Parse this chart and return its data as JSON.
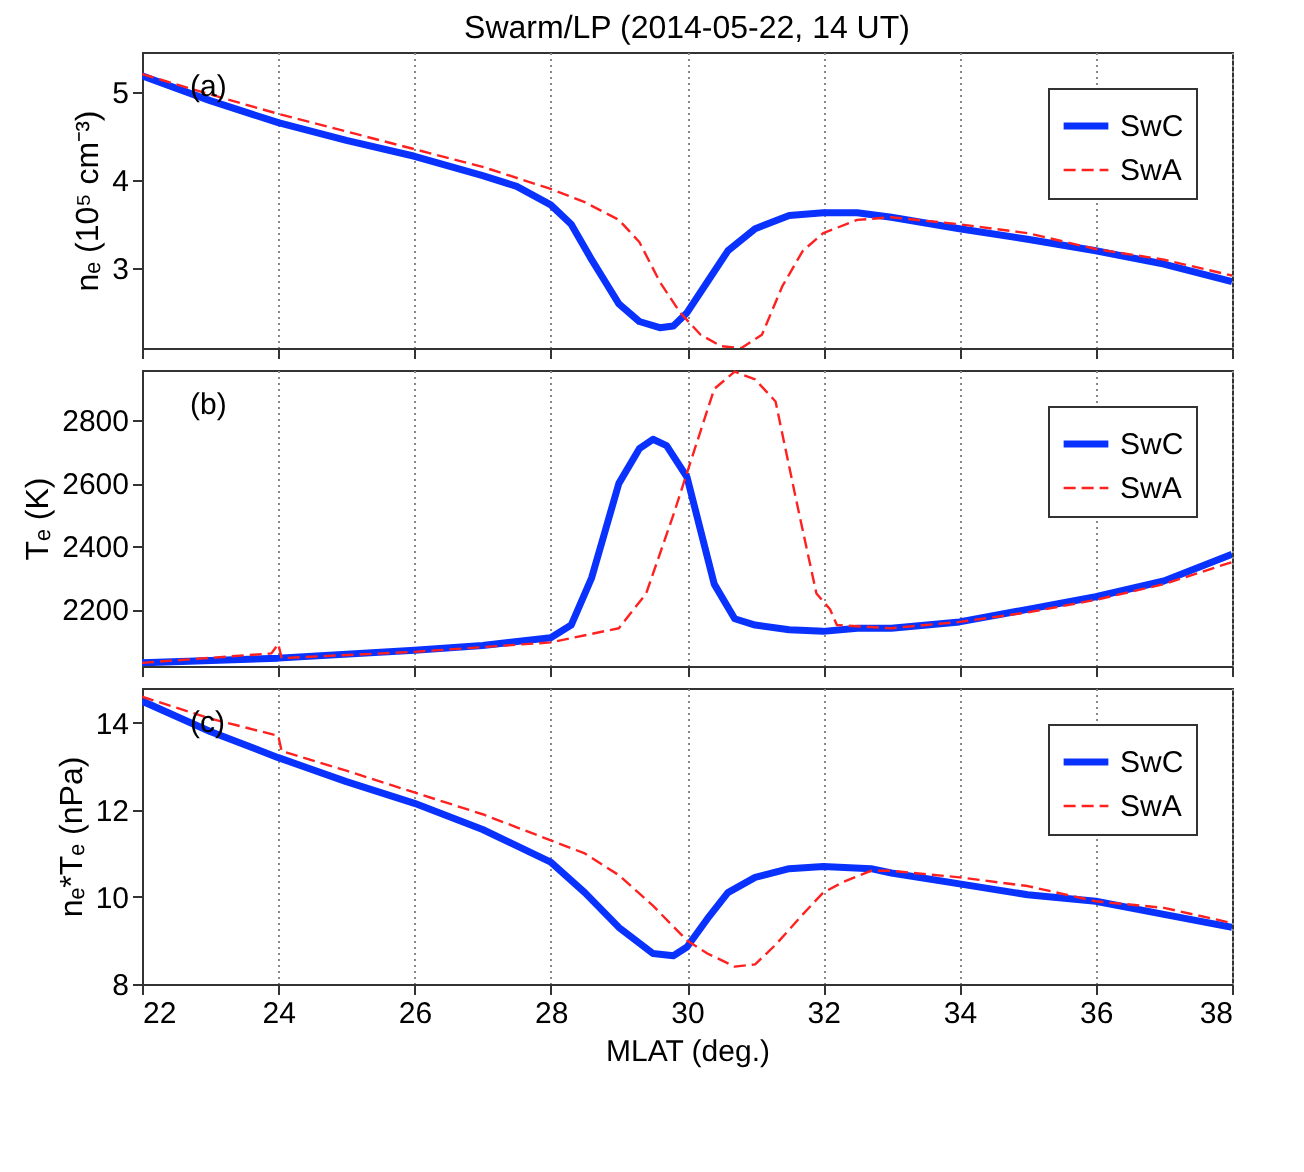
{
  "chart_data": [
    {
      "type": "line",
      "title": "Swarm/LP (2014-05-22, 14 UT)",
      "ylabel": "nₑ (10⁵ cm⁻³)",
      "annotations": [
        "(a)"
      ],
      "xlim": [
        22,
        38
      ],
      "xticks": [
        22,
        24,
        26,
        28,
        30,
        32,
        34,
        36,
        38
      ],
      "ylim": [
        2.1,
        5.45
      ],
      "yticks": [
        3,
        4,
        5
      ],
      "grid": "x",
      "legend": "top right",
      "tick_labels": "y",
      "series": [
        {
          "name": "SwC",
          "color": "#0a32ff",
          "line_style": "solid",
          "x": [
            22,
            23,
            24,
            25,
            26,
            27,
            27.5,
            28,
            28.3,
            28.6,
            28.8,
            29,
            29.3,
            29.6,
            29.8,
            30,
            30.3,
            30.6,
            31,
            31.5,
            32,
            32.5,
            33,
            34,
            35,
            36,
            37,
            38
          ],
          "values": [
            5.18,
            4.9,
            4.65,
            4.45,
            4.27,
            4.05,
            3.93,
            3.72,
            3.5,
            3.1,
            2.85,
            2.6,
            2.4,
            2.33,
            2.35,
            2.5,
            2.85,
            3.2,
            3.45,
            3.6,
            3.63,
            3.63,
            3.58,
            3.45,
            3.33,
            3.2,
            3.05,
            2.85
          ]
        },
        {
          "name": "SwA",
          "color": "#ff2020",
          "line_style": "dashed",
          "x": [
            22,
            23,
            24,
            25,
            26,
            27,
            28,
            28.5,
            29,
            29.3,
            29.6,
            29.9,
            30.2,
            30.5,
            30.8,
            31.1,
            31.4,
            31.7,
            32,
            32.5,
            33,
            34,
            35,
            36,
            37,
            38
          ],
          "values": [
            5.2,
            4.97,
            4.75,
            4.55,
            4.35,
            4.15,
            3.9,
            3.75,
            3.55,
            3.3,
            2.85,
            2.5,
            2.25,
            2.12,
            2.1,
            2.25,
            2.8,
            3.2,
            3.4,
            3.55,
            3.58,
            3.5,
            3.4,
            3.22,
            3.1,
            2.92
          ]
        }
      ]
    },
    {
      "type": "line",
      "ylabel": "Tₑ (K)",
      "annotations": [
        "(b)"
      ],
      "xlim": [
        22,
        38
      ],
      "xticks": [
        22,
        24,
        26,
        28,
        30,
        32,
        34,
        36,
        38
      ],
      "ylim": [
        2020,
        2960
      ],
      "yticks": [
        2200,
        2400,
        2600,
        2800
      ],
      "grid": "x",
      "legend": "top right",
      "tick_labels": "y",
      "series": [
        {
          "name": "SwC",
          "color": "#0a32ff",
          "line_style": "solid",
          "x": [
            22,
            24,
            26,
            27,
            28,
            28.3,
            28.6,
            28.8,
            29,
            29.3,
            29.5,
            29.7,
            30,
            30.2,
            30.4,
            30.7,
            31,
            31.5,
            32,
            32.5,
            33,
            34,
            35,
            36,
            37,
            38
          ],
          "values": [
            2030,
            2045,
            2070,
            2085,
            2110,
            2150,
            2300,
            2450,
            2600,
            2710,
            2740,
            2720,
            2620,
            2450,
            2280,
            2170,
            2150,
            2135,
            2130,
            2140,
            2140,
            2160,
            2200,
            2240,
            2290,
            2375
          ]
        },
        {
          "name": "SwA",
          "color": "#ff2020",
          "line_style": "dashed",
          "x": [
            22,
            23.9,
            24,
            24.05,
            26,
            28,
            29,
            29.4,
            29.8,
            30.1,
            30.4,
            30.7,
            31,
            31.3,
            31.6,
            31.9,
            32.1,
            32.2,
            33,
            34,
            35,
            36,
            37,
            38
          ],
          "values": [
            2030,
            2060,
            2090,
            2045,
            2065,
            2095,
            2140,
            2250,
            2500,
            2700,
            2900,
            2955,
            2930,
            2860,
            2550,
            2250,
            2200,
            2150,
            2140,
            2160,
            2190,
            2230,
            2280,
            2350
          ]
        }
      ]
    },
    {
      "type": "line",
      "xlabel": "MLAT (deg.)",
      "ylabel": "nₑ*Tₑ (nPa)",
      "annotations": [
        "(c)"
      ],
      "xlim": [
        22,
        38
      ],
      "xticks": [
        22,
        24,
        26,
        28,
        30,
        32,
        34,
        36,
        38
      ],
      "ylim": [
        8,
        14.8
      ],
      "yticks": [
        8,
        10,
        12,
        14
      ],
      "grid": "x",
      "legend": "top right",
      "series": [
        {
          "name": "SwC",
          "color": "#0a32ff",
          "line_style": "solid",
          "x": [
            22,
            23,
            24,
            25,
            26,
            27,
            28,
            28.5,
            29,
            29.5,
            29.8,
            30,
            30.3,
            30.6,
            31,
            31.5,
            32,
            32.7,
            33,
            34,
            35,
            36,
            37,
            38
          ],
          "values": [
            14.5,
            13.8,
            13.2,
            12.65,
            12.15,
            11.55,
            10.8,
            10.1,
            9.3,
            8.7,
            8.65,
            8.85,
            9.5,
            10.1,
            10.45,
            10.65,
            10.7,
            10.65,
            10.55,
            10.3,
            10.05,
            9.9,
            9.6,
            9.3
          ]
        },
        {
          "name": "SwA",
          "color": "#ff2020",
          "line_style": "dashed",
          "x": [
            22,
            23,
            24,
            24.05,
            25,
            26,
            27,
            28,
            28.5,
            29,
            29.5,
            30,
            30.3,
            30.7,
            31,
            31.3,
            31.7,
            32,
            32.3,
            32.7,
            33,
            34,
            35,
            36,
            37,
            38
          ],
          "values": [
            14.6,
            14.1,
            13.7,
            13.35,
            12.9,
            12.4,
            11.9,
            11.3,
            11.0,
            10.5,
            9.8,
            9.0,
            8.7,
            8.4,
            8.45,
            8.9,
            9.6,
            10.1,
            10.35,
            10.6,
            10.6,
            10.45,
            10.25,
            9.9,
            9.75,
            9.4
          ]
        }
      ]
    }
  ]
}
